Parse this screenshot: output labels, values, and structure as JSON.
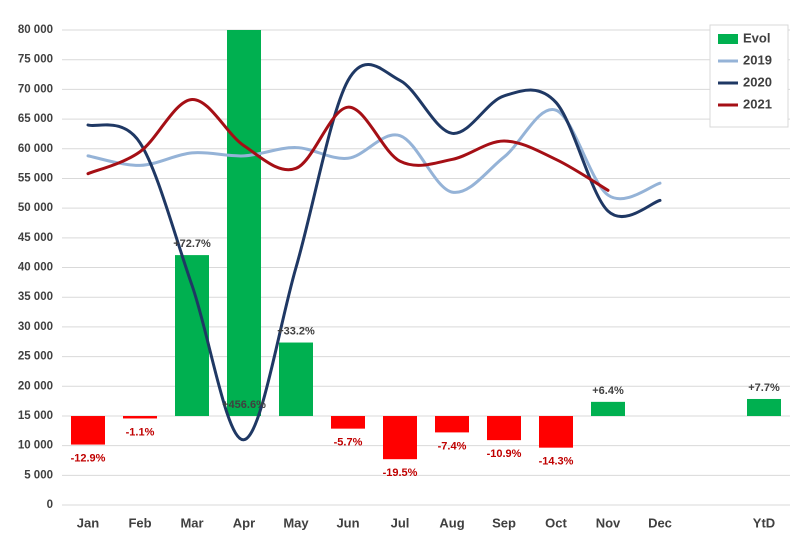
{
  "chart_data": {
    "type": "bar",
    "categories": [
      "Jan",
      "Feb",
      "Mar",
      "Apr",
      "May",
      "Jun",
      "Jul",
      "Aug",
      "Sep",
      "Oct",
      "Nov",
      "Dec",
      null,
      "YtD"
    ],
    "ylim": [
      0,
      80000
    ],
    "yticks": [
      0,
      {
        "value": 5000,
        "label": "5 000"
      },
      {
        "value": 10000,
        "label": "10 000"
      },
      {
        "value": 15000,
        "label": "15 000"
      },
      {
        "value": 20000,
        "label": "20 000"
      },
      {
        "value": 25000,
        "label": "25 000"
      },
      {
        "value": 30000,
        "label": "30 000"
      },
      {
        "value": 35000,
        "label": "35 000"
      },
      {
        "value": 40000,
        "label": "40 000"
      },
      {
        "value": 45000,
        "label": "45 000"
      },
      {
        "value": 50000,
        "label": "50 000"
      },
      {
        "value": 55000,
        "label": "55 000"
      },
      {
        "value": 60000,
        "label": "60 000"
      },
      {
        "value": 65000,
        "label": "65 000"
      },
      {
        "value": 70000,
        "label": "70 000"
      },
      {
        "value": 75000,
        "label": "75 000"
      },
      {
        "value": 80000,
        "label": "80 000"
      }
    ],
    "y2lim": [
      -40.2,
      174.4
    ],
    "grid": true,
    "legend": "upper right",
    "series": [
      {
        "name": "Evol",
        "type": "bar",
        "axis": "y2",
        "color": "#00b050",
        "negative_color": "#ff0000",
        "values": [
          -12.9,
          -1.1,
          72.7,
          456.6,
          33.2,
          -5.7,
          -19.5,
          -7.4,
          -10.9,
          -14.3,
          6.4,
          null,
          null,
          7.7
        ],
        "value_labels": [
          "-12.9%",
          "-1.1%",
          "+72.7%",
          "+456.6%",
          "+33.2%",
          "-5.7%",
          "-19.5%",
          "-7.4%",
          "-10.9%",
          "-14.3%",
          "+6.4%",
          null,
          null,
          "+7.7%"
        ]
      },
      {
        "name": "2019",
        "type": "line",
        "color": "#95b3d7",
        "values": [
          58800,
          57200,
          59300,
          58800,
          60200,
          58400,
          62200,
          52700,
          58600,
          66500,
          52200,
          54200,
          null,
          null
        ]
      },
      {
        "name": "2020",
        "type": "line",
        "color": "#1f3864",
        "values": [
          64000,
          61000,
          37000,
          11000,
          40000,
          71500,
          71500,
          62600,
          68900,
          67800,
          49500,
          51300,
          null,
          null
        ]
      },
      {
        "name": "2021",
        "type": "line",
        "color": "#a50f15",
        "values": [
          55800,
          59500,
          68300,
          60500,
          56700,
          67000,
          57900,
          58200,
          61300,
          58200,
          53000,
          null,
          null,
          null
        ]
      }
    ]
  }
}
